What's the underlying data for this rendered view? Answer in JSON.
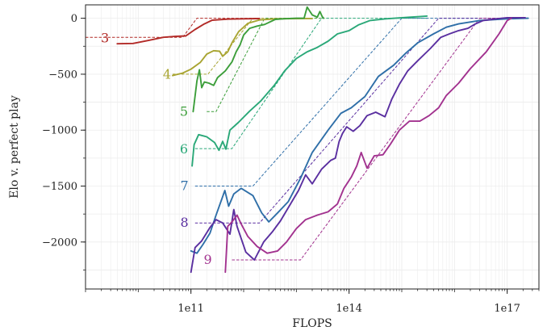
{
  "chart_data": {
    "type": "line",
    "xlabel": "FLOPS",
    "ylabel": "Elo v. perfect play",
    "xscale": "log",
    "xlim": [
      1000000000.0,
      4e+17
    ],
    "ylim": [
      -2420,
      120
    ],
    "x_ticks": [
      {
        "value": 100000000000.0,
        "label": "1e11"
      },
      {
        "value": 100000000000000.0,
        "label": "1e14"
      },
      {
        "value": 1e+17,
        "label": "1e17"
      }
    ],
    "y_ticks": [
      {
        "value": 0,
        "label": "0"
      },
      {
        "value": -500,
        "label": "−500"
      },
      {
        "value": -1000,
        "label": "−1000"
      },
      {
        "value": -1500,
        "label": "−1500"
      },
      {
        "value": -2000,
        "label": "−2000"
      }
    ],
    "grid": true,
    "legend": "none",
    "series": [
      {
        "name": "3",
        "color": "#b22a27",
        "label_at": [
          2800000000.0,
          -180
        ],
        "values": [
          [
            4000000000.0,
            -228
          ],
          [
            8000000000.0,
            -225
          ],
          [
            15000000000.0,
            -200
          ],
          [
            30000000000.0,
            -170
          ],
          [
            50000000000.0,
            -162
          ],
          [
            80000000000.0,
            -158
          ],
          [
            120000000000.0,
            -100
          ],
          [
            180000000000.0,
            -50
          ],
          [
            250000000000.0,
            -18
          ],
          [
            500000000000.0,
            -8
          ],
          [
            1000000000000.0,
            -5
          ],
          [
            2000000000000.0,
            -3
          ]
        ],
        "frontier": [
          [
            1000000000.0,
            -170
          ],
          [
            70000000000.0,
            -170
          ],
          [
            130000000000.0,
            0
          ],
          [
            2000000000000.0,
            0
          ]
        ]
      },
      {
        "name": "4",
        "color": "#a8a431",
        "label_at": [
          42000000000.0,
          -505
        ],
        "values": [
          [
            45000000000.0,
            -512
          ],
          [
            70000000000.0,
            -490
          ],
          [
            100000000000.0,
            -455
          ],
          [
            150000000000.0,
            -395
          ],
          [
            200000000000.0,
            -320
          ],
          [
            270000000000.0,
            -290
          ],
          [
            350000000000.0,
            -295
          ],
          [
            400000000000.0,
            -340
          ],
          [
            500000000000.0,
            -300
          ],
          [
            600000000000.0,
            -220
          ],
          [
            800000000000.0,
            -120
          ],
          [
            1200000000000.0,
            -45
          ],
          [
            2000000000000.0,
            -15
          ],
          [
            4000000000000.0,
            -5
          ],
          [
            20000000000000.0,
            -2
          ]
        ],
        "frontier": [
          [
            45000000000.0,
            -500
          ],
          [
            210000000000.0,
            -500
          ],
          [
            1500000000000.0,
            0
          ],
          [
            20000000000000.0,
            0
          ]
        ]
      },
      {
        "name": "5",
        "color": "#3c9e3a",
        "label_at": [
          88000000000.0,
          -835
        ],
        "values": [
          [
            110000000000.0,
            -835
          ],
          [
            130000000000.0,
            -560
          ],
          [
            145000000000.0,
            -460
          ],
          [
            160000000000.0,
            -620
          ],
          [
            180000000000.0,
            -570
          ],
          [
            220000000000.0,
            -580
          ],
          [
            270000000000.0,
            -600
          ],
          [
            320000000000.0,
            -530
          ],
          [
            450000000000.0,
            -470
          ],
          [
            600000000000.0,
            -390
          ],
          [
            720000000000.0,
            -300
          ],
          [
            850000000000.0,
            -240
          ],
          [
            1000000000000.0,
            -150
          ],
          [
            1300000000000.0,
            -90
          ],
          [
            1800000000000.0,
            -70
          ],
          [
            2500000000000.0,
            -55
          ],
          [
            4000000000000.0,
            -10
          ],
          [
            6000000000000.0,
            -4
          ],
          [
            10000000000000.0,
            0
          ],
          [
            13000000000000.0,
            0
          ],
          [
            14000000000000.0,
            0
          ],
          [
            16000000000000.0,
            100
          ],
          [
            20000000000000.0,
            30
          ],
          [
            25000000000000.0,
            10
          ],
          [
            28000000000000.0,
            60
          ],
          [
            31000000000000.0,
            15
          ],
          [
            33000000000000.0,
            0
          ]
        ],
        "frontier": [
          [
            200000000000.0,
            -835
          ],
          [
            300000000000.0,
            -835
          ],
          [
            2500000000000.0,
            0
          ],
          [
            33000000000000.0,
            0
          ]
        ]
      },
      {
        "name": "6",
        "color": "#2aa878",
        "label_at": [
          88000000000.0,
          -1170
        ],
        "values": [
          [
            105000000000.0,
            -1320
          ],
          [
            115000000000.0,
            -1130
          ],
          [
            140000000000.0,
            -1040
          ],
          [
            200000000000.0,
            -1060
          ],
          [
            280000000000.0,
            -1110
          ],
          [
            340000000000.0,
            -1180
          ],
          [
            400000000000.0,
            -1100
          ],
          [
            460000000000.0,
            -1170
          ],
          [
            550000000000.0,
            -1000
          ],
          [
            800000000000.0,
            -930
          ],
          [
            1300000000000.0,
            -830
          ],
          [
            2100000000000.0,
            -740
          ],
          [
            3800000000000.0,
            -600
          ],
          [
            6000000000000.0,
            -470
          ],
          [
            10000000000000.0,
            -360
          ],
          [
            16000000000000.0,
            -300
          ],
          [
            25000000000000.0,
            -260
          ],
          [
            40000000000000.0,
            -205
          ],
          [
            60000000000000.0,
            -140
          ],
          [
            100000000000000.0,
            -110
          ],
          [
            150000000000000.0,
            -60
          ],
          [
            250000000000000.0,
            -20
          ],
          [
            500000000000000.0,
            -5
          ],
          [
            1500000000000000.0,
            10
          ],
          [
            3000000000000000.0,
            20
          ]
        ],
        "frontier": [
          [
            120000000000.0,
            -1165
          ],
          [
            600000000000.0,
            -1165
          ],
          [
            30000000000000.0,
            0
          ],
          [
            3000000000000000.0,
            0
          ]
        ]
      },
      {
        "name": "7",
        "color": "#2f6fa8",
        "label_at": [
          90000000000.0,
          -1500
        ],
        "values": [
          [
            100000000000.0,
            -2080
          ],
          [
            130000000000.0,
            -2100
          ],
          [
            170000000000.0,
            -2020
          ],
          [
            230000000000.0,
            -1920
          ],
          [
            300000000000.0,
            -1760
          ],
          [
            440000000000.0,
            -1540
          ],
          [
            520000000000.0,
            -1680
          ],
          [
            650000000000.0,
            -1570
          ],
          [
            900000000000.0,
            -1520
          ],
          [
            1500000000000.0,
            -1585
          ],
          [
            2200000000000.0,
            -1740
          ],
          [
            3000000000000.0,
            -1820
          ],
          [
            4400000000000.0,
            -1740
          ],
          [
            7000000000000.0,
            -1640
          ],
          [
            12000000000000.0,
            -1430
          ],
          [
            20000000000000.0,
            -1200
          ],
          [
            40000000000000.0,
            -1000
          ],
          [
            70000000000000.0,
            -850
          ],
          [
            110000000000000.0,
            -800
          ],
          [
            200000000000000.0,
            -700
          ],
          [
            360000000000000.0,
            -520
          ],
          [
            700000000000000.0,
            -420
          ],
          [
            1200000000000000.0,
            -310
          ],
          [
            2000000000000000.0,
            -220
          ],
          [
            4000000000000000.0,
            -140
          ],
          [
            7000000000000000.0,
            -80
          ],
          [
            1.2e+16,
            -50
          ],
          [
            3e+16,
            -20
          ],
          [
            1e+17,
            -5
          ],
          [
            2.5e+17,
            0
          ]
        ],
        "frontier": [
          [
            120000000000.0,
            -1500
          ],
          [
            1500000000000.0,
            -1500
          ],
          [
            1000000000000000.0,
            0
          ],
          [
            2.5e+17,
            0
          ]
        ]
      },
      {
        "name": "8",
        "color": "#5a2fa0",
        "label_at": [
          90000000000.0,
          -1830
        ],
        "values": [
          [
            100000000000.0,
            -2270
          ],
          [
            120000000000.0,
            -2050
          ],
          [
            160000000000.0,
            -1990
          ],
          [
            230000000000.0,
            -1870
          ],
          [
            300000000000.0,
            -1800
          ],
          [
            400000000000.0,
            -1830
          ],
          [
            550000000000.0,
            -1930
          ],
          [
            650000000000.0,
            -1710
          ],
          [
            750000000000.0,
            -1860
          ],
          [
            1100000000000.0,
            -2090
          ],
          [
            1600000000000.0,
            -2160
          ],
          [
            2400000000000.0,
            -2000
          ],
          [
            3500000000000.0,
            -1910
          ],
          [
            5000000000000.0,
            -1810
          ],
          [
            7500000000000.0,
            -1670
          ],
          [
            11000000000000.0,
            -1540
          ],
          [
            15000000000000.0,
            -1400
          ],
          [
            20000000000000.0,
            -1480
          ],
          [
            30000000000000.0,
            -1350
          ],
          [
            45000000000000.0,
            -1270
          ],
          [
            55000000000000.0,
            -1250
          ],
          [
            65000000000000.0,
            -1100
          ],
          [
            75000000000000.0,
            -1030
          ],
          [
            90000000000000.0,
            -970
          ],
          [
            120000000000000.0,
            -1010
          ],
          [
            160000000000000.0,
            -960
          ],
          [
            220000000000000.0,
            -870
          ],
          [
            320000000000000.0,
            -840
          ],
          [
            480000000000000.0,
            -880
          ],
          [
            650000000000000.0,
            -720
          ],
          [
            900000000000000.0,
            -590
          ],
          [
            1300000000000000.0,
            -470
          ],
          [
            2000000000000000.0,
            -380
          ],
          [
            3500000000000000.0,
            -270
          ],
          [
            5500000000000000.0,
            -170
          ],
          [
            8000000000000000.0,
            -140
          ],
          [
            1.2e+16,
            -110
          ],
          [
            1.8e+16,
            -90
          ],
          [
            2.5e+16,
            -50
          ],
          [
            3.5e+16,
            -20
          ],
          [
            5.2e+16,
            -10
          ],
          [
            8e+16,
            0
          ],
          [
            1e+17,
            5
          ],
          [
            2.2e+17,
            5
          ]
        ],
        "frontier": [
          [
            120000000000.0,
            -1830
          ],
          [
            2000000000000.0,
            -1830
          ],
          [
            5000000000000000.0,
            0
          ],
          [
            2.2e+17,
            0
          ]
        ]
      },
      {
        "name": "9",
        "color": "#a2328f",
        "label_at": [
          250000000000.0,
          -2160
        ],
        "values": [
          [
            450000000000.0,
            -2270
          ],
          [
            500000000000.0,
            -1860
          ],
          [
            600000000000.0,
            -1820
          ],
          [
            750000000000.0,
            -1760
          ],
          [
            900000000000.0,
            -1840
          ],
          [
            1200000000000.0,
            -1950
          ],
          [
            1800000000000.0,
            -2040
          ],
          [
            2800000000000.0,
            -2100
          ],
          [
            4400000000000.0,
            -2080
          ],
          [
            6500000000000.0,
            -2000
          ],
          [
            10000000000000.0,
            -1880
          ],
          [
            15000000000000.0,
            -1800
          ],
          [
            25000000000000.0,
            -1760
          ],
          [
            40000000000000.0,
            -1730
          ],
          [
            60000000000000.0,
            -1660
          ],
          [
            80000000000000.0,
            -1520
          ],
          [
            110000000000000.0,
            -1420
          ],
          [
            140000000000000.0,
            -1320
          ],
          [
            170000000000000.0,
            -1200
          ],
          [
            220000000000000.0,
            -1340
          ],
          [
            300000000000000.0,
            -1230
          ],
          [
            440000000000000.0,
            -1220
          ],
          [
            600000000000000.0,
            -1130
          ],
          [
            900000000000000.0,
            -1000
          ],
          [
            1400000000000000.0,
            -920
          ],
          [
            2200000000000000.0,
            -920
          ],
          [
            3300000000000000.0,
            -870
          ],
          [
            5000000000000000.0,
            -800
          ],
          [
            7000000000000000.0,
            -690
          ],
          [
            1.2e+16,
            -580
          ],
          [
            2e+16,
            -450
          ],
          [
            4e+16,
            -300
          ],
          [
            7e+16,
            -140
          ],
          [
            1e+17,
            -20
          ],
          [
            1.2e+17,
            0
          ]
        ],
        "frontier": [
          [
            600000000000.0,
            -2160
          ],
          [
            12000000000000.0,
            -2160
          ],
          [
            3e+16,
            0
          ],
          [
            1.2e+17,
            0
          ]
        ]
      }
    ]
  }
}
